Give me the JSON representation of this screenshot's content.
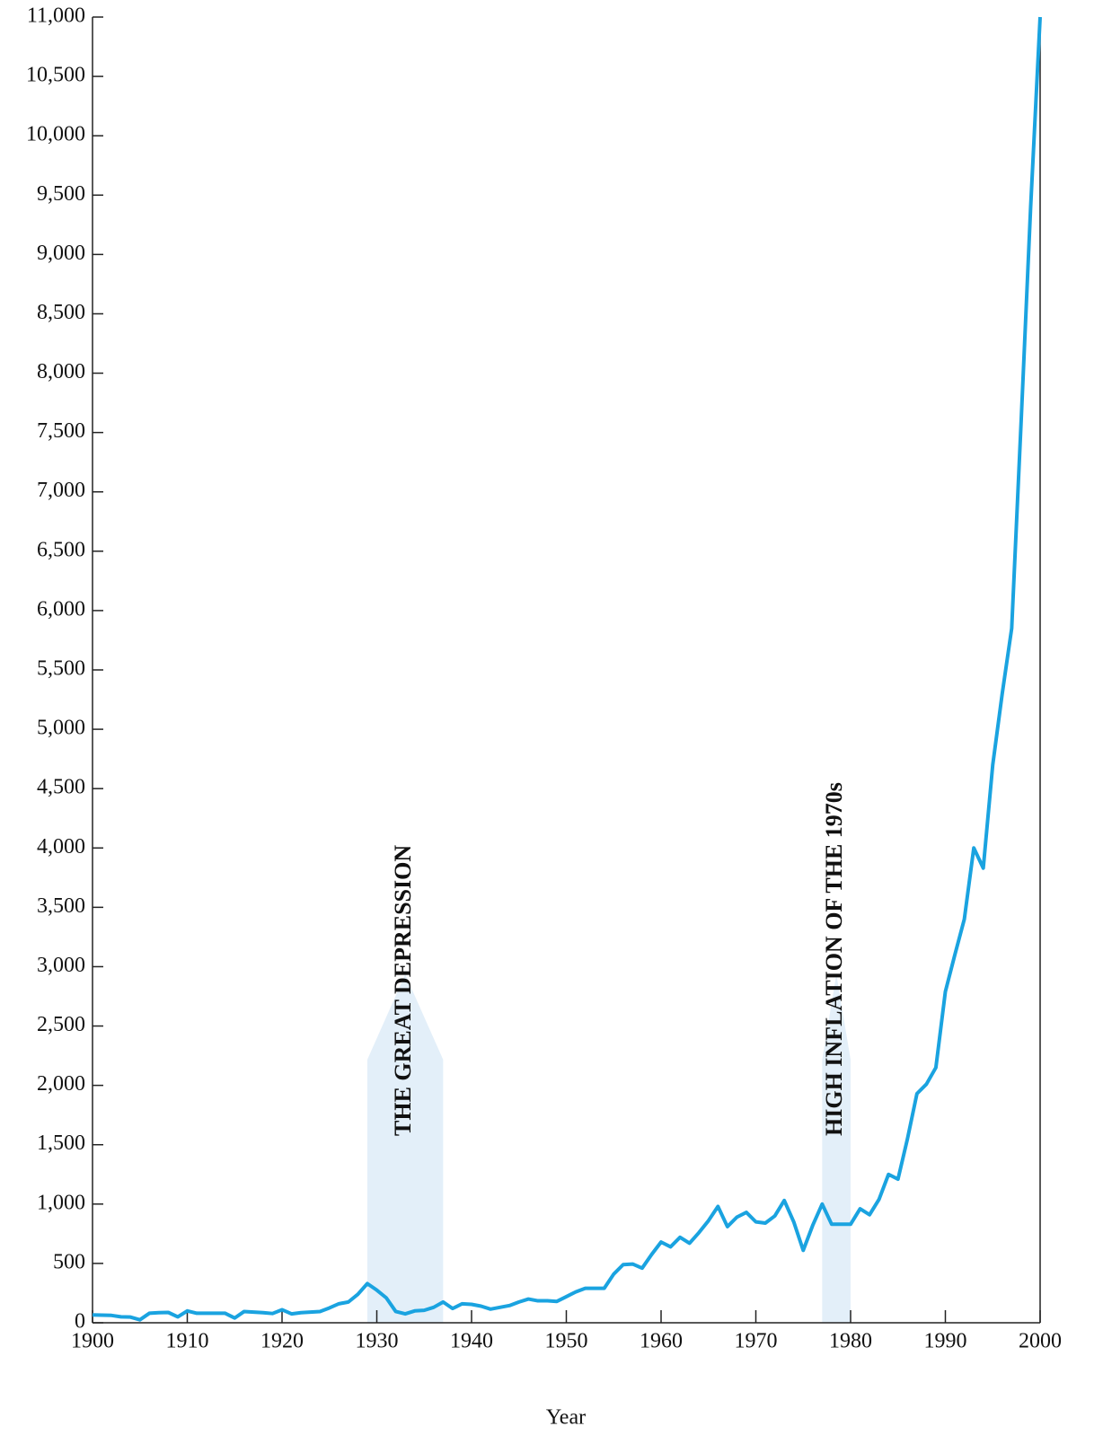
{
  "chart_data": {
    "type": "line",
    "x_label": "Year",
    "x": [
      1900,
      1901,
      1902,
      1903,
      1904,
      1905,
      1906,
      1907,
      1908,
      1909,
      1910,
      1911,
      1912,
      1913,
      1914,
      1915,
      1916,
      1917,
      1918,
      1919,
      1920,
      1921,
      1922,
      1923,
      1924,
      1925,
      1926,
      1927,
      1928,
      1929,
      1930,
      1931,
      1932,
      1933,
      1934,
      1935,
      1936,
      1937,
      1938,
      1939,
      1940,
      1941,
      1942,
      1943,
      1944,
      1945,
      1946,
      1947,
      1948,
      1949,
      1950,
      1951,
      1952,
      1953,
      1954,
      1955,
      1956,
      1957,
      1958,
      1959,
      1960,
      1961,
      1962,
      1963,
      1964,
      1965,
      1966,
      1967,
      1968,
      1969,
      1970,
      1971,
      1972,
      1973,
      1974,
      1975,
      1976,
      1977,
      1978,
      1979,
      1980,
      1981,
      1982,
      1983,
      1984,
      1985,
      1986,
      1987,
      1988,
      1989,
      1990,
      1991,
      1992,
      1993,
      1994,
      1995,
      1996,
      1997,
      1998,
      1999,
      2000
    ],
    "series": [
      {
        "color": "#1aa3e0",
        "values": [
          66,
          64,
          62,
          50,
          48,
          25,
          80,
          85,
          87,
          50,
          100,
          80,
          80,
          80,
          80,
          40,
          95,
          90,
          85,
          78,
          110,
          75,
          85,
          90,
          95,
          125,
          160,
          175,
          240,
          330,
          275,
          210,
          95,
          75,
          100,
          105,
          130,
          175,
          120,
          160,
          155,
          140,
          115,
          130,
          145,
          175,
          200,
          185,
          185,
          180,
          220,
          260,
          290,
          290,
          290,
          410,
          490,
          495,
          460,
          575,
          680,
          640,
          720,
          670,
          760,
          860,
          980,
          810,
          890,
          930,
          850,
          840,
          900,
          1030,
          850,
          610,
          820,
          1000,
          830,
          830,
          830,
          960,
          910,
          1040,
          1250,
          1210,
          1550,
          1930,
          2010,
          2150,
          2790,
          3100,
          3400,
          4000,
          3830,
          4700,
          5300,
          5850,
          7600,
          9400,
          11000
        ]
      }
    ],
    "xlim": [
      1900,
      2000
    ],
    "xticks": [
      1900,
      1910,
      1920,
      1930,
      1940,
      1950,
      1960,
      1970,
      1980,
      1990,
      2000
    ],
    "ylim": [
      0,
      11000
    ],
    "yticks": [
      0,
      500,
      {
        "value": 1000,
        "label": "1,000"
      },
      {
        "value": 1500,
        "label": "1,500"
      },
      {
        "value": 2000,
        "label": "2,000"
      },
      {
        "value": 2500,
        "label": "2,500"
      },
      {
        "value": 3000,
        "label": "3,000"
      },
      {
        "value": 3500,
        "label": "3,500"
      },
      {
        "value": 4000,
        "label": "4,000"
      },
      {
        "value": 4500,
        "label": "4,500"
      },
      {
        "value": 5000,
        "label": "5,000"
      },
      {
        "value": 5500,
        "label": "5,500"
      },
      {
        "value": 6000,
        "label": "6,000"
      },
      {
        "value": 6500,
        "label": "6,500"
      },
      {
        "value": 7000,
        "label": "7,000"
      },
      {
        "value": 7500,
        "label": "7,500"
      },
      {
        "value": 8000,
        "label": "8,000"
      },
      {
        "value": 8500,
        "label": "8,500"
      },
      {
        "value": 9000,
        "label": "9,000"
      },
      {
        "value": 9500,
        "label": "9,500"
      },
      {
        "value": 10000,
        "label": "10,000"
      },
      {
        "value": 10500,
        "label": "10,500"
      },
      {
        "value": 11000,
        "label": "11,000"
      }
    ],
    "annotations": [
      {
        "text": "THE GREAT DEPRESSION",
        "x": [
          1929,
          1937
        ]
      },
      {
        "text": "HIGH INFLATION OF THE 1970s",
        "x": [
          1977,
          1980
        ]
      }
    ]
  }
}
